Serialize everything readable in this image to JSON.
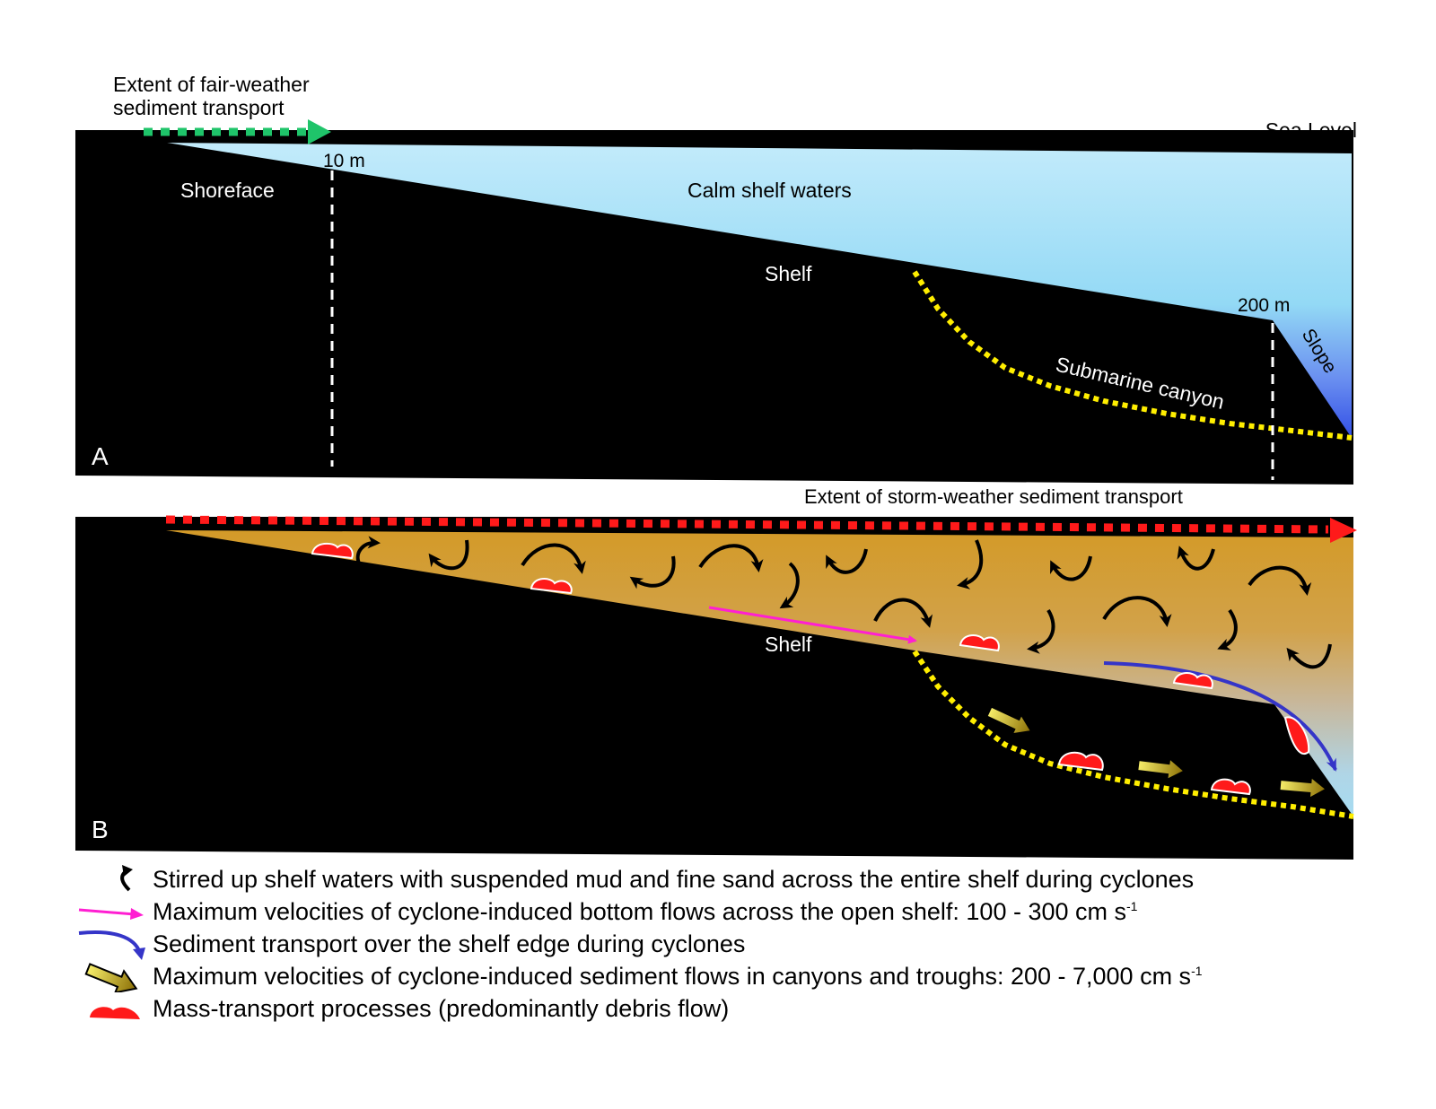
{
  "panel_a": {
    "panel_letter": "A",
    "fair_weather_label_line1": "Extent of fair-weather",
    "fair_weather_label_line2": "sediment transport",
    "sea_level": "Sea Level",
    "depth_shallow": "10 m",
    "depth_deep": "200 m",
    "shoreface": "Shoreface",
    "calm_waters": "Calm shelf waters",
    "shelf": "Shelf",
    "canyon": "Submarine canyon",
    "slope": "Slope"
  },
  "panel_b": {
    "panel_letter": "B",
    "storm_label": "Extent of storm-weather sediment transport",
    "shelf": "Shelf"
  },
  "legend": {
    "stirred": "Stirred up shelf waters with suspended mud and fine sand across the entire shelf during cyclones",
    "bottom_flow_text": "Maximum velocities of cyclone-induced bottom flows across the open shelf: 100 - 300 cm s",
    "bottom_flow_sup": "-1",
    "shelf_edge": "Sediment transport over the shelf edge during cyclones",
    "canyon_flow_text": "Maximum velocities of cyclone-induced sediment flows in canyons and troughs: 200 - 7,000 cm s",
    "canyon_flow_sup": "-1",
    "mass_transport": "Mass-transport processes (predominantly debris flow)"
  },
  "colors": {
    "ground": "#000000",
    "calm_water_top": "#bfe9fb",
    "calm_water_bottom": "#3d5fe6",
    "storm_water_top": "#d39b2c",
    "storm_water_bottom": "#a9d9ee",
    "fair_weather_arrow": "#1fc46a",
    "storm_arrow": "#ff1a1a",
    "canyon_line": "#ffee00",
    "bottom_flow": "#ff1fd2",
    "shelf_edge_flow": "#3535c8",
    "debris": "#ff1a1a"
  }
}
